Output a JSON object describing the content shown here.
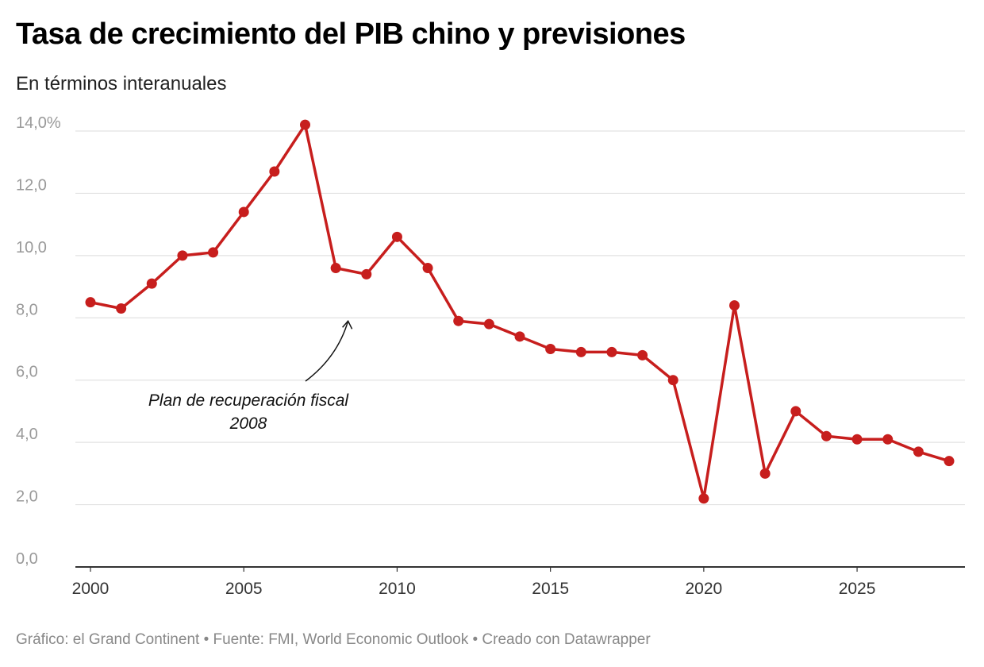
{
  "title": "Tasa de crecimiento del PIB chino y previsiones",
  "subtitle": "En términos interanuales",
  "footer": "Gráfico: el Grand Continent • Fuente: FMI, World Economic Outlook • Creado con Datawrapper",
  "chart_data": {
    "type": "line",
    "title": "Tasa de crecimiento del PIB chino y previsiones",
    "subtitle": "En términos interanuales",
    "x": [
      2000,
      2001,
      2002,
      2003,
      2004,
      2005,
      2006,
      2007,
      2008,
      2009,
      2010,
      2011,
      2012,
      2013,
      2014,
      2015,
      2016,
      2017,
      2018,
      2019,
      2020,
      2021,
      2022,
      2023,
      2024,
      2025,
      2026,
      2027,
      2028
    ],
    "series": [
      {
        "values": [
          8.5,
          8.3,
          9.1,
          10.0,
          10.1,
          11.4,
          12.7,
          14.2,
          9.6,
          9.4,
          10.6,
          9.6,
          7.9,
          7.8,
          7.4,
          7.0,
          6.9,
          6.9,
          6.8,
          6.0,
          2.2,
          8.4,
          3.0,
          5.0,
          4.2,
          4.1,
          4.1,
          3.7,
          3.4
        ],
        "color": "#c71e1d"
      }
    ],
    "ylim": [
      0,
      14
    ],
    "yticks": [
      0,
      2,
      4,
      6,
      8,
      10,
      12,
      14
    ],
    "ytick_labels": [
      "0,0",
      "2,0",
      "4,0",
      "6,0",
      "8,0",
      "10,0",
      "12,0",
      "14,0%"
    ],
    "xticks": [
      2000,
      2005,
      2010,
      2015,
      2020,
      2025
    ],
    "xtick_labels": [
      "2000",
      "2005",
      "2010",
      "2015",
      "2020",
      "2025"
    ],
    "xlim": [
      2000,
      2028
    ],
    "grid": true,
    "annotation": {
      "lines": [
        "Plan de recuperación fiscal",
        "2008"
      ],
      "x": 2008.4,
      "y": 8.0
    }
  }
}
